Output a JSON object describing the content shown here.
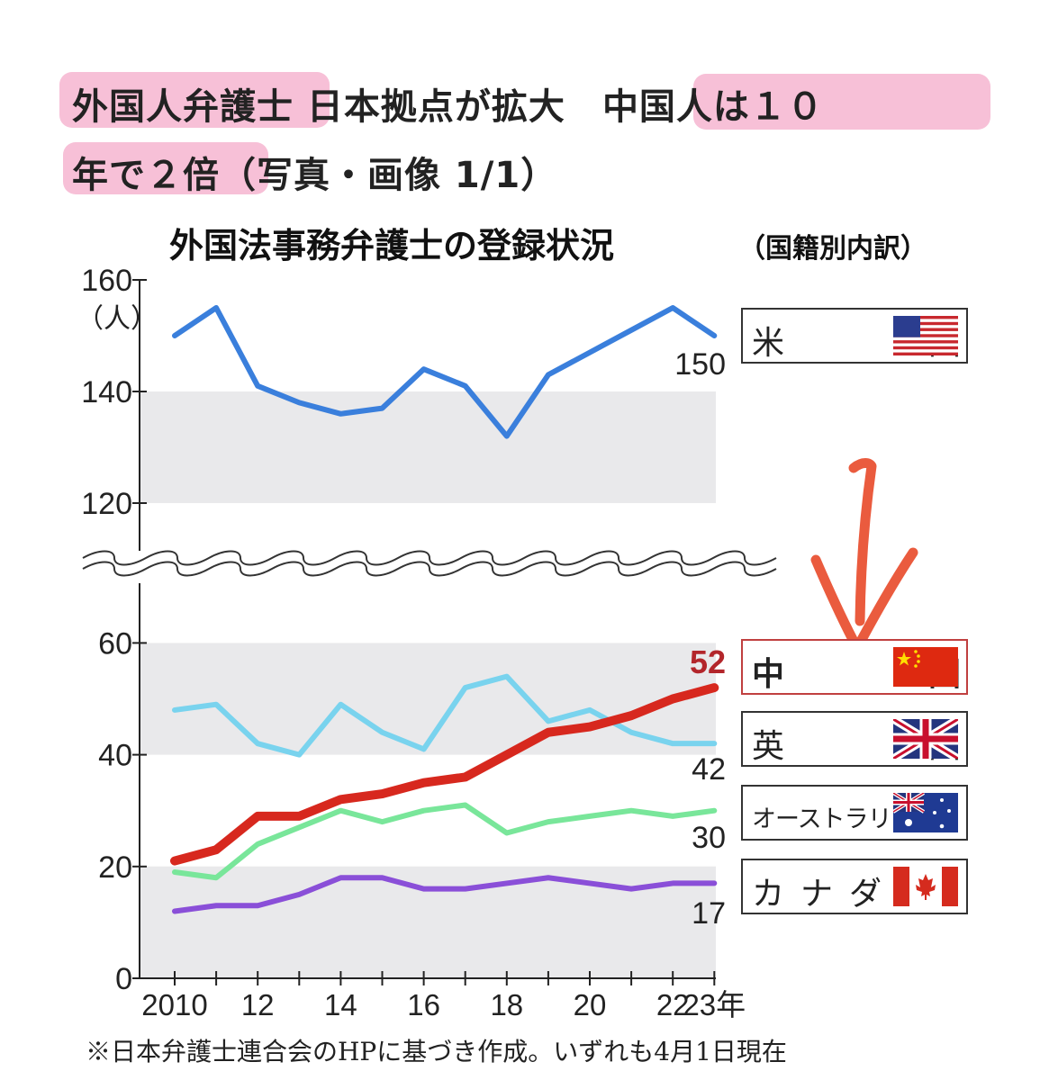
{
  "headline": {
    "line1_a": "外国人弁護士",
    "line1_b": " 日本拠点が拡大　",
    "line1_c": "中国人は１０",
    "line2_a": "年で２倍",
    "line2_b": "（写真・画像 1/1）"
  },
  "chart_data": {
    "type": "line",
    "title": "外国法事務弁護士の登録状況",
    "subtitle": "（国籍別内訳）",
    "y_unit": "（人）",
    "axis_break": {
      "from": 70,
      "to": 110
    },
    "ylim_lower": [
      0,
      70
    ],
    "ylim_upper": [
      110,
      160
    ],
    "y_ticks": [
      0,
      20,
      40,
      60,
      120,
      140,
      160
    ],
    "x": [
      2010,
      2011,
      2012,
      2013,
      2014,
      2015,
      2016,
      2017,
      2018,
      2019,
      2020,
      2021,
      2022,
      2023
    ],
    "x_tick_labels": [
      {
        "x": 2010,
        "label": "2010"
      },
      {
        "x": 2012,
        "label": "12"
      },
      {
        "x": 2014,
        "label": "14"
      },
      {
        "x": 2016,
        "label": "16"
      },
      {
        "x": 2018,
        "label": "18"
      },
      {
        "x": 2020,
        "label": "20"
      },
      {
        "x": 2022,
        "label": "22"
      },
      {
        "x": 2023,
        "label": "23年"
      }
    ],
    "series": [
      {
        "name": "米国",
        "color": "#3a7fdc",
        "values": [
          150,
          155,
          141,
          138,
          136,
          137,
          144,
          141,
          132,
          143,
          147,
          151,
          155,
          150
        ],
        "end_label": "150"
      },
      {
        "name": "中国",
        "color": "#d7281e",
        "values": [
          21,
          23,
          29,
          29,
          32,
          33,
          35,
          36,
          40,
          44,
          45,
          47,
          50,
          52
        ],
        "end_label": "52"
      },
      {
        "name": "英国",
        "color": "#79d3ee",
        "values": [
          48,
          49,
          42,
          40,
          49,
          44,
          41,
          52,
          54,
          46,
          48,
          44,
          42,
          42
        ],
        "end_label": "42"
      },
      {
        "name": "オーストラリア",
        "color": "#79e69a",
        "values": [
          19,
          18,
          24,
          27,
          30,
          28,
          30,
          31,
          26,
          28,
          29,
          30,
          29,
          30
        ],
        "end_label": "30"
      },
      {
        "name": "カナダ",
        "color": "#8a4fd8",
        "values": [
          12,
          13,
          13,
          15,
          18,
          18,
          16,
          16,
          17,
          18,
          17,
          16,
          17,
          17
        ],
        "end_label": "17"
      }
    ],
    "legend": {
      "placement": "right",
      "items": [
        {
          "label": "米　国",
          "flag": "usa-flag-icon"
        },
        {
          "label": "中　国",
          "flag": "china-flag-icon"
        },
        {
          "label": "英　国",
          "flag": "uk-flag-icon"
        },
        {
          "label": "オーストラリア",
          "flag": "australia-flag-icon"
        },
        {
          "label": "カナダ",
          "flag": "canada-flag-icon"
        }
      ]
    },
    "note": "※日本弁護士連合会のHPに基づき作成。いずれも4月1日現在"
  }
}
